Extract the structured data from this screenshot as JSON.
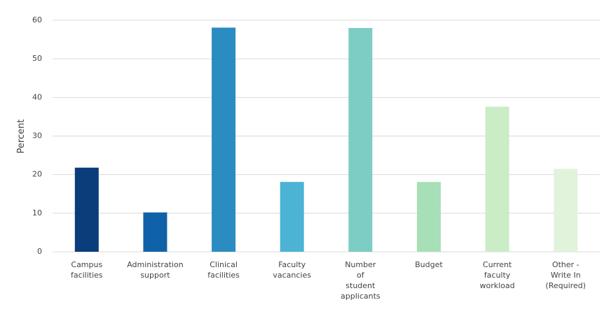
{
  "chart_data": {
    "type": "bar",
    "y_label": "Percent",
    "categories": [
      [
        "Campus",
        "facilities"
      ],
      [
        "Administration",
        "support"
      ],
      [
        "Clinical",
        "facilities"
      ],
      [
        "Faculty",
        "vacancies"
      ],
      [
        "Number",
        "of",
        "student",
        "applicants"
      ],
      [
        "Budget"
      ],
      [
        "Current",
        "faculty",
        "workload"
      ],
      [
        "Other -",
        "Write In",
        "(Required)"
      ]
    ],
    "values": [
      21.8,
      10.2,
      58.1,
      18.1,
      58,
      18.1,
      37.6,
      21.5
    ],
    "colors": [
      "#0b3d7a",
      "#1062a8",
      "#2a8cc1",
      "#4cb3d4",
      "#7dcdc4",
      "#a7dfb6",
      "#caecc6",
      "#e2f3dc"
    ],
    "ylim": [
      0,
      60
    ],
    "yticks": [
      0,
      10,
      20,
      30,
      40,
      50,
      60
    ],
    "grid": true
  }
}
